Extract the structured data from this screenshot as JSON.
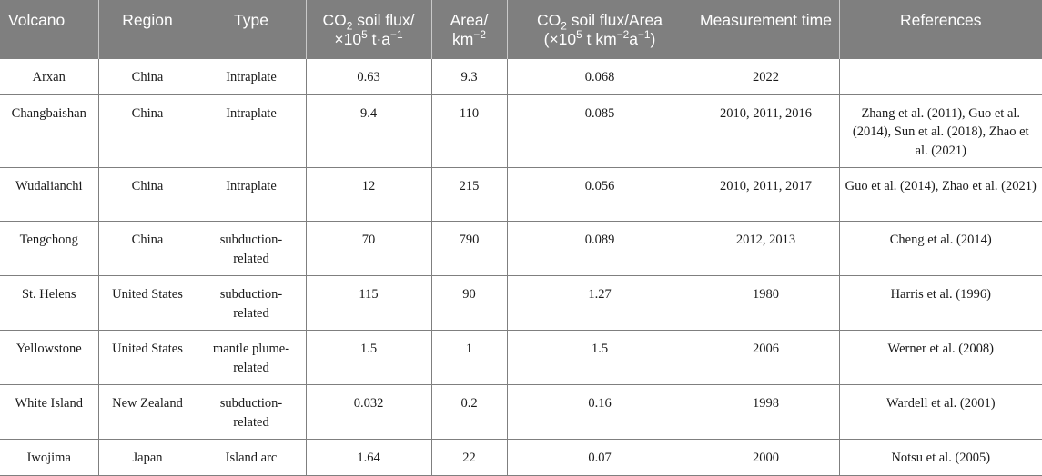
{
  "headers": [
    {
      "text": "Volcano"
    },
    {
      "text": "Region"
    },
    {
      "text": "Type"
    },
    {
      "p1": "CO",
      "s1": "2",
      "p2": " soil flux/",
      "p3": "×10",
      "s2": "5",
      "p4": " t·a",
      "s3": "−1"
    },
    {
      "p1": "Area/",
      "p3": "km",
      "s3": "−2"
    },
    {
      "p1": "CO",
      "s1": "2",
      "p2": " soil flux/Area",
      "p3": "(×10",
      "s2": "5",
      "p4": " t km",
      "s3": "−2",
      "p5": "a",
      "s4": "−1",
      "p6": ")"
    },
    {
      "text": "Measurement time"
    },
    {
      "text": "References"
    }
  ],
  "rows": [
    [
      "Arxan",
      "China",
      "Intraplate",
      "0.63",
      "9.3",
      "0.068",
      "2022",
      ""
    ],
    [
      "Changbaishan",
      "China",
      "Intraplate",
      "9.4",
      "110",
      "0.085",
      "2010, 2011, 2016",
      "Zhang et al. (2011), Guo et al. (2014), Sun et al. (2018), Zhao et al. (2021)"
    ],
    [
      "Wudalianchi",
      "China",
      "Intraplate",
      "12",
      "215",
      "0.056",
      "2010, 2011, 2017",
      "Guo et al. (2014), Zhao et al. (2021)"
    ],
    [
      "Tengchong",
      "China",
      "subduction-related",
      "70",
      "790",
      "0.089",
      "2012, 2013",
      "Cheng et al. (2014)"
    ],
    [
      "St. Helens",
      "United States",
      "subduction-related",
      "115",
      "90",
      "1.27",
      "1980",
      "Harris et al. (1996)"
    ],
    [
      "Yellowstone",
      "United States",
      "mantle plume-related",
      "1.5",
      "1",
      "1.5",
      "2006",
      "Werner et al. (2008)"
    ],
    [
      "White Island",
      "New Zealand",
      "subduction-related",
      "0.032",
      "0.2",
      "0.16",
      "1998",
      "Wardell et al. (2001)"
    ],
    [
      "Iwojima",
      "Japan",
      "Island arc",
      "1.64",
      "22",
      "0.07",
      "2000",
      "Notsu et al. (2005)"
    ]
  ]
}
